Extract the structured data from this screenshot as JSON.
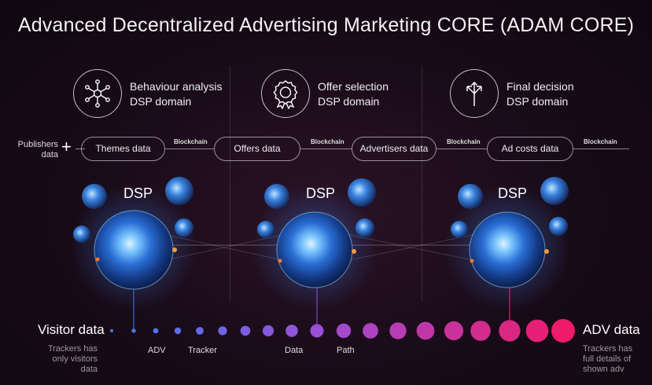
{
  "title": "Advanced Decentralized Advertising Marketing CORE (ADAM CORE)",
  "domains": [
    {
      "line1": "Behaviour analysis",
      "line2": "DSP domain",
      "icon": "network-nodes-icon"
    },
    {
      "line1": "Offer selection",
      "line2": "DSP domain",
      "icon": "award-badge-icon"
    },
    {
      "line1": "Final decision",
      "line2": "DSP domain",
      "icon": "split-arrows-icon"
    }
  ],
  "publishers": {
    "line1": "Publishers",
    "line2": "data"
  },
  "plus": "+",
  "pipeline": [
    "Themes data",
    "Offers data",
    "Advertisers data",
    "Ad costs data"
  ],
  "blockchain_label": "Blockchain",
  "dsp_label": "DSP",
  "visitor": {
    "label": "Visitor data",
    "note1": "Trackers has",
    "note2": "only visitors data"
  },
  "adv": {
    "label": "ADV data",
    "note1": "Trackers has",
    "note2": "full details of",
    "note3": "shown adv"
  },
  "timeline_labels": [
    "ADV",
    "Tracker",
    "Data",
    "Path"
  ],
  "colors": {
    "dot_start": "#3d7ef0",
    "dot_mid": "#9a4fd6",
    "dot_end": "#ee1a6a",
    "globe": "#4aa8ff"
  }
}
